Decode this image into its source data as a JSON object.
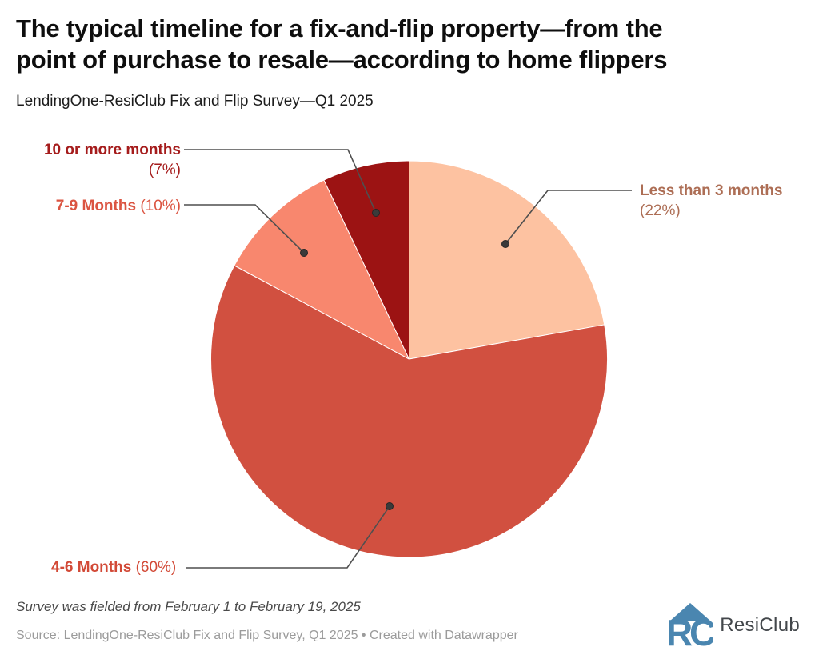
{
  "title_lines": [
    "The typical timeline for a fix-and-flip property—from the",
    "point of purchase to resale—according to home flippers"
  ],
  "subtitle": "LendingOne-ResiClub Fix and Flip Survey—Q1 2025",
  "chart_data": {
    "type": "pie",
    "title": "The typical timeline for a fix-and-flip property—from the point of purchase to resale—according to home flippers",
    "subtitle": "LendingOne-ResiClub Fix and Flip Survey—Q1 2025",
    "unit": "%",
    "start_angle": "12 o'clock, clockwise",
    "slices": [
      {
        "label": "Less than 3 months",
        "value": 22,
        "pct_text": "(22%)",
        "color": "#FDC2A1",
        "label_color": "#AD6E55"
      },
      {
        "label": "4-6 Months",
        "value": 60,
        "pct_text": "(60%)",
        "color": "#D15040",
        "label_color": "#D24936"
      },
      {
        "label": "7-9 Months",
        "value": 10,
        "pct_text": "(10%)",
        "color": "#F8876E",
        "label_color": "#DB5441"
      },
      {
        "label": "10 or more months",
        "value": 7,
        "pct_text": "(7%)",
        "color": "#9C1313",
        "label_color": "#A51C1C"
      }
    ]
  },
  "footer": {
    "note": "Survey was fielded from February 1 to February 19, 2025",
    "source": "Source: LendingOne-ResiClub Fix and Flip Survey, Q1 2025 • Created with Datawrapper",
    "brand": "ResiClub"
  },
  "colors": {
    "leader_line": "#4F4F4F",
    "leader_dot": "#3A3A3A",
    "logo_blue": "#4A86B0"
  }
}
